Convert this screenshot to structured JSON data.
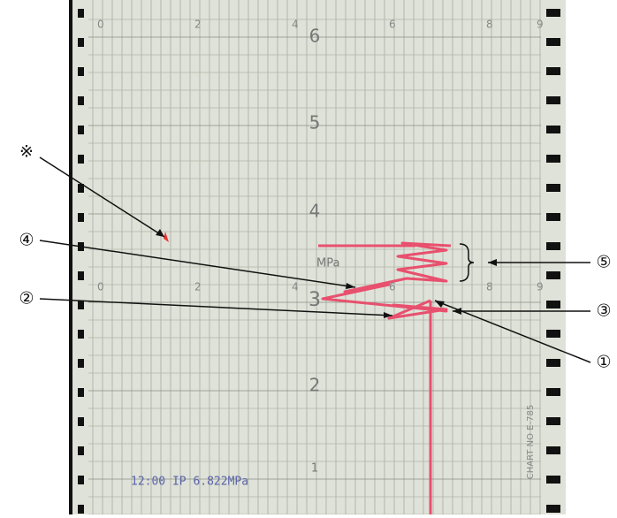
{
  "scale_top": {
    "labels": [
      "0",
      "2",
      "4",
      "6",
      "8",
      "9"
    ]
  },
  "scale_middle": {
    "labels": [
      "0",
      "2",
      "4",
      "6",
      "8",
      "9"
    ]
  },
  "pressure_labels": [
    "6",
    "5",
    "4",
    "3",
    "2",
    "1"
  ],
  "unit": "MPa",
  "callouts": [
    "※",
    "④",
    "②",
    "⑤",
    "③",
    "①"
  ],
  "footer_text": "12:00 IP 6.822MPa",
  "chart_number": "CHART NO E-785"
}
